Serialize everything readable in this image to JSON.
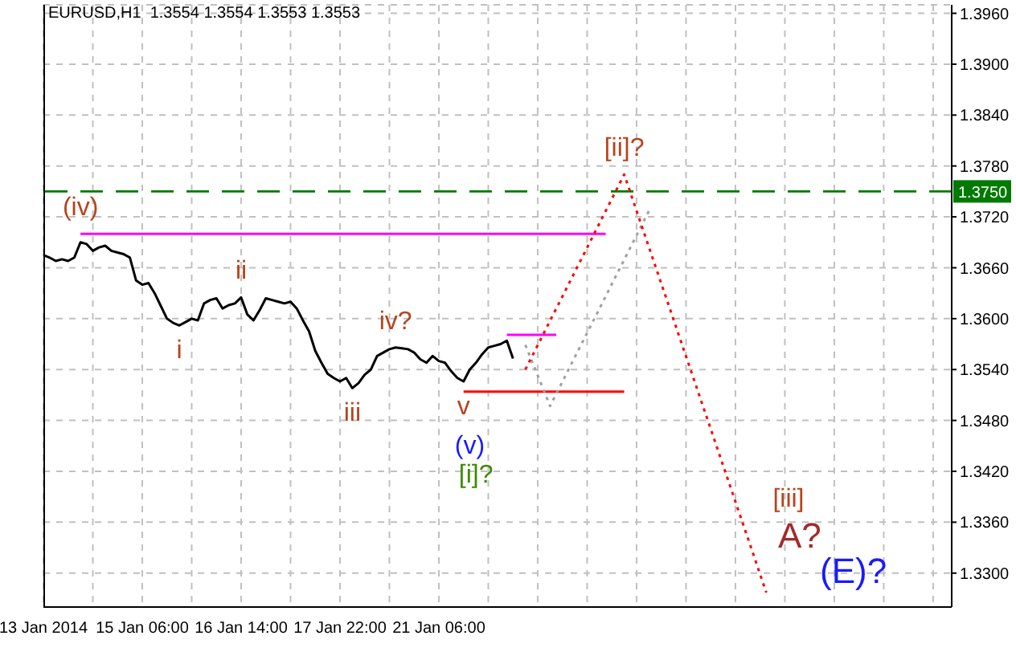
{
  "chart_data": {
    "type": "line",
    "title": "EURUSD,H1  1.3554 1.3554 1.3553 1.3553",
    "categories": [
      "13 Jan 2014",
      null,
      null,
      null,
      null,
      null,
      null,
      null,
      null,
      null,
      null,
      null,
      null,
      null,
      null,
      null,
      "15 Jan 06:00",
      null,
      null,
      null,
      null,
      null,
      null,
      null,
      null,
      null,
      null,
      null,
      null,
      null,
      null,
      null,
      "16 Jan 14:00",
      null,
      null,
      null,
      null,
      null,
      null,
      null,
      null,
      null,
      null,
      null,
      null,
      null,
      null,
      null,
      "17 Jan 22:00",
      null,
      null,
      null,
      null,
      null,
      null,
      null,
      null,
      null,
      null,
      null,
      null,
      null,
      null,
      null,
      "21 Jan 06:00",
      null,
      null,
      null,
      null,
      null,
      null,
      null,
      null,
      null,
      null,
      null,
      null,
      null,
      null,
      null,
      null,
      null,
      null,
      null,
      null,
      null,
      null,
      null,
      null,
      null,
      null,
      null,
      null,
      null,
      null,
      null,
      null,
      null,
      null,
      null,
      null,
      null,
      null,
      null,
      null,
      null,
      null,
      null,
      null,
      null,
      null,
      null,
      null,
      null,
      null,
      null,
      null,
      null,
      null,
      null,
      null,
      null,
      null,
      null,
      null,
      null,
      null,
      null,
      null,
      null,
      null,
      null,
      null,
      null,
      null,
      null,
      null,
      null,
      null,
      null,
      null,
      null,
      null,
      null,
      null,
      null,
      null,
      null
    ],
    "ylim": [
      1.326,
      1.397
    ],
    "yticks": [
      {
        "value": 1.33,
        "label": "1.3300"
      },
      {
        "value": 1.336,
        "label": "1.3360"
      },
      {
        "value": 1.342,
        "label": "1.3420"
      },
      {
        "value": 1.348,
        "label": "1.3480"
      },
      {
        "value": 1.354,
        "label": "1.3540"
      },
      {
        "value": 1.36,
        "label": "1.3600"
      },
      {
        "value": 1.366,
        "label": "1.3660"
      },
      {
        "value": 1.372,
        "label": "1.3720"
      },
      {
        "value": 1.378,
        "label": "1.3780"
      },
      {
        "value": 1.384,
        "label": "1.3840"
      },
      {
        "value": 1.39,
        "label": "1.3900"
      },
      {
        "value": 1.396,
        "label": "1.3960"
      }
    ],
    "grid": true,
    "marker": "none",
    "series": [
      {
        "color": "#000000",
        "line_style": "solid",
        "values": [
          1.3675,
          1.3672,
          1.3668,
          1.367,
          1.3668,
          1.3672,
          1.369,
          1.3688,
          1.368,
          1.3684,
          1.3686,
          1.368,
          1.3678,
          1.3676,
          1.3672,
          1.3645,
          1.364,
          1.3642,
          1.363,
          1.3615,
          1.36,
          1.3595,
          1.3592,
          1.3596,
          1.36,
          1.3598,
          1.3618,
          1.3622,
          1.3624,
          1.3612,
          1.3616,
          1.3618,
          1.3625,
          1.3605,
          1.3598,
          1.361,
          1.3624,
          1.3622,
          1.362,
          1.3618,
          1.362,
          1.3612,
          1.3598,
          1.3585,
          1.3562,
          1.3548,
          1.3535,
          1.353,
          1.3526,
          1.353,
          1.3518,
          1.3524,
          1.3534,
          1.354,
          1.3556,
          1.356,
          1.3564,
          1.3566,
          1.3565,
          1.3564,
          1.356,
          1.3552,
          1.3548,
          1.3556,
          1.355,
          1.3548,
          1.3538,
          1.353,
          1.3526,
          1.354,
          1.3548,
          1.3558,
          1.3566,
          1.3568,
          1.357,
          1.3574,
          1.3553,
          null,
          null,
          null,
          null,
          null,
          null,
          null,
          null,
          null,
          null,
          null,
          null,
          null,
          null,
          null,
          null,
          null,
          null,
          null,
          null,
          null,
          null,
          null,
          null,
          null,
          null,
          null,
          null,
          null,
          null,
          null,
          null,
          null,
          null,
          null,
          null,
          null,
          null,
          null,
          null,
          null,
          null,
          null,
          null,
          null,
          null,
          null,
          null,
          null,
          null,
          null,
          null,
          null,
          null,
          null,
          null,
          null,
          null,
          null,
          null,
          null,
          null,
          null,
          null,
          null,
          null,
          null,
          null,
          null,
          null,
          null
        ],
        "value_labels": [
          null,
          null,
          null,
          null,
          null,
          null,
          null,
          null,
          null,
          null,
          null,
          null,
          null,
          null,
          null,
          null,
          null,
          null,
          null,
          null,
          null,
          null,
          "i",
          null,
          null,
          null,
          null,
          null,
          null,
          null,
          null,
          null,
          "ii",
          null,
          null,
          null,
          null,
          null,
          null,
          null,
          null,
          null,
          null,
          null,
          null,
          null,
          null,
          null,
          null,
          null,
          "iii",
          null,
          null,
          null,
          null,
          null,
          null,
          "iv?",
          null,
          null,
          null,
          null,
          null,
          null,
          null,
          null,
          null,
          null,
          "v",
          null,
          null,
          null,
          null,
          null,
          null,
          null,
          null,
          null,
          null,
          null,
          null,
          null,
          null,
          null,
          null,
          null,
          null,
          null,
          null,
          null,
          null,
          null,
          null,
          null,
          null,
          null,
          null,
          null,
          null,
          null,
          null,
          null,
          null,
          null,
          null,
          null,
          null,
          null,
          null,
          null,
          null,
          null,
          null,
          null,
          null,
          null,
          null,
          null,
          null,
          null,
          null,
          null,
          null,
          null,
          null,
          null,
          null,
          null,
          null,
          null,
          null,
          null,
          null,
          null,
          null,
          null,
          null,
          null,
          null,
          null,
          null,
          null,
          null,
          null,
          null,
          null,
          null,
          null
        ]
      },
      {
        "color": "#ff00ff",
        "line_style": "solid",
        "values": [
          null,
          null,
          null,
          null,
          null,
          null,
          1.37,
          1.37,
          1.37,
          1.37,
          1.37,
          1.37,
          1.37,
          1.37,
          1.37,
          1.37,
          1.37,
          1.37,
          1.37,
          1.37,
          1.37,
          1.37,
          1.37,
          1.37,
          1.37,
          1.37,
          1.37,
          1.37,
          1.37,
          1.37,
          1.37,
          1.37,
          1.37,
          1.37,
          1.37,
          1.37,
          1.37,
          1.37,
          1.37,
          1.37,
          1.37,
          1.37,
          1.37,
          1.37,
          1.37,
          1.37,
          1.37,
          1.37,
          1.37,
          1.37,
          1.37,
          1.37,
          1.37,
          1.37,
          1.37,
          1.37,
          1.37,
          1.37,
          1.37,
          1.37,
          1.37,
          1.37,
          1.37,
          1.37,
          1.37,
          1.37,
          1.37,
          1.37,
          1.37,
          1.37,
          1.37,
          1.37,
          1.37,
          1.37,
          1.37,
          1.37,
          1.37,
          1.37,
          1.37,
          1.37,
          1.37,
          1.37,
          1.37,
          1.37,
          1.37,
          1.37,
          1.37,
          1.37,
          1.37,
          1.37,
          1.37,
          1.37,
          null,
          null,
          null,
          null,
          null,
          null,
          null,
          null,
          null,
          null,
          null,
          null,
          null,
          null,
          null,
          null,
          null,
          null,
          null,
          null,
          null,
          null,
          null,
          null,
          null,
          null,
          null,
          null,
          null,
          null,
          null,
          null,
          null,
          null,
          null,
          null,
          null,
          null,
          null,
          null,
          null,
          null,
          null,
          null,
          null,
          null,
          null,
          null,
          null,
          null,
          null,
          null,
          null,
          null,
          null,
          null
        ],
        "value_labels": [
          null,
          null,
          null,
          null,
          null,
          null,
          "(iv)",
          null,
          null,
          null,
          null,
          null,
          null,
          null,
          null,
          null,
          null,
          null,
          null,
          null,
          null,
          null,
          null,
          null,
          null,
          null,
          null,
          null,
          null,
          null,
          null,
          null,
          null,
          null,
          null,
          null,
          null,
          null,
          null,
          null,
          null,
          null,
          null,
          null,
          null,
          null,
          null,
          null,
          null,
          null,
          null,
          null,
          null,
          null,
          null,
          null,
          null,
          null,
          null,
          null,
          null,
          null,
          null,
          null,
          null,
          null,
          null,
          null,
          null,
          null,
          null,
          null,
          null,
          null,
          null,
          null,
          null,
          null,
          null,
          null,
          null,
          null,
          null,
          null,
          null,
          null,
          null,
          null,
          null,
          null,
          null,
          null,
          null,
          null,
          null,
          null,
          null,
          null,
          null,
          null,
          null,
          null,
          null,
          null,
          null,
          null,
          null,
          null,
          null,
          null,
          null,
          null,
          null,
          null,
          null,
          null,
          null,
          null,
          null,
          null,
          null,
          null,
          null,
          null,
          null,
          null,
          null,
          null,
          null,
          null,
          null,
          null,
          null,
          null,
          null,
          null,
          null,
          null,
          null,
          null,
          null,
          null,
          null,
          null,
          null,
          null,
          null,
          null
        ]
      },
      {
        "color": "#ff00ff",
        "line_style": "solid",
        "values": [
          null,
          null,
          null,
          null,
          null,
          null,
          null,
          null,
          null,
          null,
          null,
          null,
          null,
          null,
          null,
          null,
          null,
          null,
          null,
          null,
          null,
          null,
          null,
          null,
          null,
          null,
          null,
          null,
          null,
          null,
          null,
          null,
          null,
          null,
          null,
          null,
          null,
          null,
          null,
          null,
          null,
          null,
          null,
          null,
          null,
          null,
          null,
          null,
          null,
          null,
          null,
          null,
          null,
          null,
          null,
          null,
          null,
          null,
          null,
          null,
          null,
          null,
          null,
          null,
          null,
          null,
          null,
          null,
          null,
          null,
          null,
          null,
          null,
          null,
          null,
          1.3581,
          1.3581,
          1.3581,
          1.3581,
          1.3581,
          1.3581,
          1.3581,
          1.3581,
          1.3581,
          null,
          null,
          null,
          null,
          null,
          null,
          null,
          null,
          null,
          null,
          null,
          null,
          null,
          null,
          null,
          null,
          null,
          null,
          null,
          null,
          null,
          null,
          null,
          null,
          null,
          null,
          null,
          null,
          null,
          null,
          null,
          null,
          null,
          null,
          null,
          null,
          null,
          null,
          null,
          null,
          null,
          null,
          null,
          null,
          null,
          null,
          null,
          null,
          null,
          null,
          null,
          null,
          null,
          null,
          null,
          null,
          null,
          null,
          null,
          null,
          null,
          null,
          null,
          null
        ]
      },
      {
        "color": "#ff0000",
        "line_style": "solid",
        "values": [
          null,
          null,
          null,
          null,
          null,
          null,
          null,
          null,
          null,
          null,
          null,
          null,
          null,
          null,
          null,
          null,
          null,
          null,
          null,
          null,
          null,
          null,
          null,
          null,
          null,
          null,
          null,
          null,
          null,
          null,
          null,
          null,
          null,
          null,
          null,
          null,
          null,
          null,
          null,
          null,
          null,
          null,
          null,
          null,
          null,
          null,
          null,
          null,
          null,
          null,
          null,
          null,
          null,
          null,
          null,
          null,
          null,
          null,
          null,
          null,
          null,
          null,
          null,
          null,
          null,
          null,
          null,
          null,
          1.3514,
          1.3514,
          1.3514,
          1.3514,
          1.3514,
          1.3514,
          1.3514,
          1.3514,
          1.3514,
          1.3514,
          1.3514,
          1.3514,
          1.3514,
          1.3514,
          1.3514,
          1.3514,
          1.3514,
          1.3514,
          1.3514,
          1.3514,
          1.3514,
          1.3514,
          1.3514,
          1.3514,
          1.3514,
          1.3514,
          1.3514,
          null,
          null,
          null,
          null,
          null,
          null,
          null,
          null,
          null,
          null,
          null,
          null,
          null,
          null,
          null,
          null,
          null,
          null,
          null,
          null,
          null,
          null,
          null,
          null,
          null,
          null,
          null,
          null,
          null,
          null,
          null,
          null,
          null,
          null,
          null,
          null,
          null,
          null,
          null,
          null,
          null,
          null,
          null,
          null,
          null,
          null,
          null,
          null,
          null,
          null,
          null,
          null,
          null
        ],
        "value_labels": [
          null,
          null,
          null,
          null,
          null,
          null,
          null,
          null,
          null,
          null,
          null,
          null,
          null,
          null,
          null,
          null,
          null,
          null,
          null,
          null,
          null,
          null,
          null,
          null,
          null,
          null,
          null,
          null,
          null,
          null,
          null,
          null,
          null,
          null,
          null,
          null,
          null,
          null,
          null,
          null,
          null,
          null,
          null,
          null,
          null,
          null,
          null,
          null,
          null,
          null,
          null,
          null,
          null,
          null,
          null,
          null,
          null,
          null,
          null,
          null,
          null,
          null,
          null,
          null,
          null,
          null,
          null,
          null,
          null,
          "(v)",
          "[i]?",
          null,
          null,
          null,
          null,
          null,
          null,
          null,
          null,
          null,
          null,
          null,
          null,
          null,
          null,
          null,
          null,
          null,
          null,
          null,
          null,
          null,
          null,
          null,
          null,
          null,
          null,
          null,
          null,
          null,
          null,
          null,
          null,
          null,
          null,
          null,
          null,
          null,
          null,
          null,
          null,
          null,
          null,
          null,
          null,
          null,
          null,
          null,
          null,
          null,
          null,
          null,
          null,
          null,
          null,
          null,
          null,
          null,
          null,
          null,
          null,
          null,
          null,
          null,
          null,
          null,
          null,
          null,
          null,
          null,
          null,
          null,
          null,
          null,
          null,
          null,
          null,
          null
        ]
      },
      {
        "color": "#a0a0a0",
        "line_style": "dotted",
        "values": [
          null,
          null,
          null,
          null,
          null,
          null,
          null,
          null,
          null,
          null,
          null,
          null,
          null,
          null,
          null,
          null,
          null,
          null,
          null,
          null,
          null,
          null,
          null,
          null,
          null,
          null,
          null,
          null,
          null,
          null,
          null,
          null,
          null,
          null,
          null,
          null,
          null,
          null,
          null,
          null,
          null,
          null,
          null,
          null,
          null,
          null,
          null,
          null,
          null,
          null,
          null,
          null,
          null,
          null,
          null,
          null,
          null,
          null,
          null,
          null,
          null,
          null,
          null,
          null,
          null,
          null,
          null,
          null,
          null,
          null,
          null,
          null,
          null,
          null,
          null,
          null,
          null,
          null,
          1.3569,
          null,
          null,
          null,
          1.3497,
          null,
          null,
          null,
          null,
          null,
          null,
          null,
          null,
          null,
          null,
          null,
          null,
          null,
          null,
          null,
          1.3727,
          null,
          null,
          null,
          null,
          null,
          null,
          null,
          null,
          null,
          null,
          null,
          null,
          null,
          null,
          null,
          null,
          null,
          null,
          null,
          null,
          null,
          null,
          null,
          null,
          null,
          null,
          null,
          null,
          null,
          null,
          null,
          null,
          null,
          null,
          null,
          null,
          null,
          null,
          null,
          null,
          null,
          null,
          null,
          null,
          null,
          null,
          null,
          null,
          null
        ]
      },
      {
        "color": "#ff0000",
        "line_style": "dotted",
        "values": [
          null,
          null,
          null,
          null,
          null,
          null,
          null,
          null,
          null,
          null,
          null,
          null,
          null,
          null,
          null,
          null,
          null,
          null,
          null,
          null,
          null,
          null,
          null,
          null,
          null,
          null,
          null,
          null,
          null,
          null,
          null,
          null,
          null,
          null,
          null,
          null,
          null,
          null,
          null,
          null,
          null,
          null,
          null,
          null,
          null,
          null,
          null,
          null,
          null,
          null,
          null,
          null,
          null,
          null,
          null,
          null,
          null,
          null,
          null,
          null,
          null,
          null,
          null,
          null,
          null,
          null,
          null,
          null,
          null,
          null,
          null,
          null,
          null,
          null,
          null,
          null,
          null,
          null,
          1.354,
          null,
          null,
          null,
          null,
          null,
          null,
          null,
          null,
          null,
          null,
          null,
          null,
          null,
          null,
          null,
          1.377,
          null,
          null,
          null,
          null,
          null,
          null,
          null,
          null,
          null,
          null,
          null,
          null,
          null,
          null,
          null,
          null,
          null,
          null,
          null,
          null,
          null,
          null,
          1.3277,
          null,
          null,
          null,
          null,
          null,
          null,
          null,
          null,
          null,
          null,
          null,
          null,
          null,
          null,
          null,
          null,
          null,
          null,
          null,
          null,
          null,
          null,
          null,
          null,
          null,
          null,
          null,
          null,
          null,
          null
        ],
        "value_labels": [
          null,
          null,
          null,
          null,
          null,
          null,
          null,
          null,
          null,
          null,
          null,
          null,
          null,
          null,
          null,
          null,
          null,
          null,
          null,
          null,
          null,
          null,
          null,
          null,
          null,
          null,
          null,
          null,
          null,
          null,
          null,
          null,
          null,
          null,
          null,
          null,
          null,
          null,
          null,
          null,
          null,
          null,
          null,
          null,
          null,
          null,
          null,
          null,
          null,
          null,
          null,
          null,
          null,
          null,
          null,
          null,
          null,
          null,
          null,
          null,
          null,
          null,
          null,
          null,
          null,
          null,
          null,
          null,
          null,
          null,
          null,
          null,
          null,
          null,
          null,
          null,
          null,
          null,
          null,
          null,
          null,
          null,
          null,
          null,
          null,
          null,
          null,
          null,
          null,
          null,
          null,
          null,
          null,
          null,
          "[ii]?",
          null,
          null,
          null,
          null,
          null,
          null,
          null,
          null,
          null,
          null,
          null,
          null,
          null,
          null,
          null,
          null,
          null,
          null,
          null,
          null,
          null,
          null,
          "[iii]",
          null,
          null,
          null,
          null,
          null,
          null,
          null,
          null,
          null,
          null,
          null,
          null,
          null,
          null,
          null,
          null,
          null,
          null,
          null,
          null,
          null,
          null,
          null,
          null,
          null,
          null,
          null,
          null,
          null,
          null
        ]
      }
    ],
    "ref_lines": [
      {
        "axis": "y",
        "value": 1.375,
        "label": "1.3750",
        "color": "#007a00",
        "line_style": "dashed"
      }
    ],
    "annotations": [
      "A?",
      "(E)?"
    ]
  }
}
